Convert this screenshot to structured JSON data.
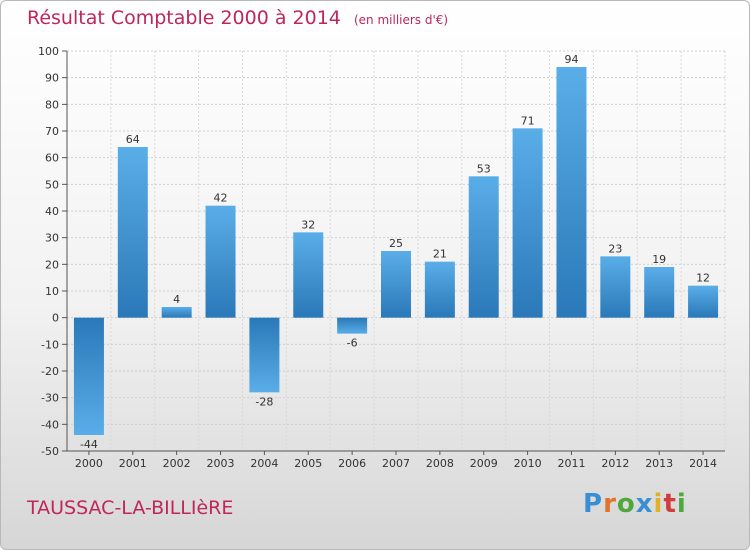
{
  "header": {
    "title": "Résultat Comptable 2000 à 2014",
    "subtitle": "(en milliers d'€)"
  },
  "footer": {
    "commune": "TAUSSAC-LA-BILLIèRE",
    "logo_text": "Proxiti"
  },
  "colors": {
    "bar_top": "#5aaee8",
    "bar_bottom": "#2a78b8",
    "title": "#c0265b"
  },
  "chart_data": {
    "type": "bar",
    "title": "Résultat Comptable 2000 à 2014",
    "xlabel": "",
    "ylabel": "",
    "categories": [
      "2000",
      "2001",
      "2002",
      "2003",
      "2004",
      "2005",
      "2006",
      "2007",
      "2008",
      "2009",
      "2010",
      "2011",
      "2012",
      "2013",
      "2014"
    ],
    "values": [
      -44,
      64,
      4,
      42,
      -28,
      32,
      -6,
      25,
      21,
      53,
      71,
      94,
      23,
      19,
      12
    ],
    "ylim": [
      -50,
      100
    ],
    "yticks": [
      -50,
      -40,
      -30,
      -20,
      -10,
      0,
      10,
      20,
      30,
      40,
      50,
      60,
      70,
      80,
      90,
      100
    ],
    "grid": true
  }
}
